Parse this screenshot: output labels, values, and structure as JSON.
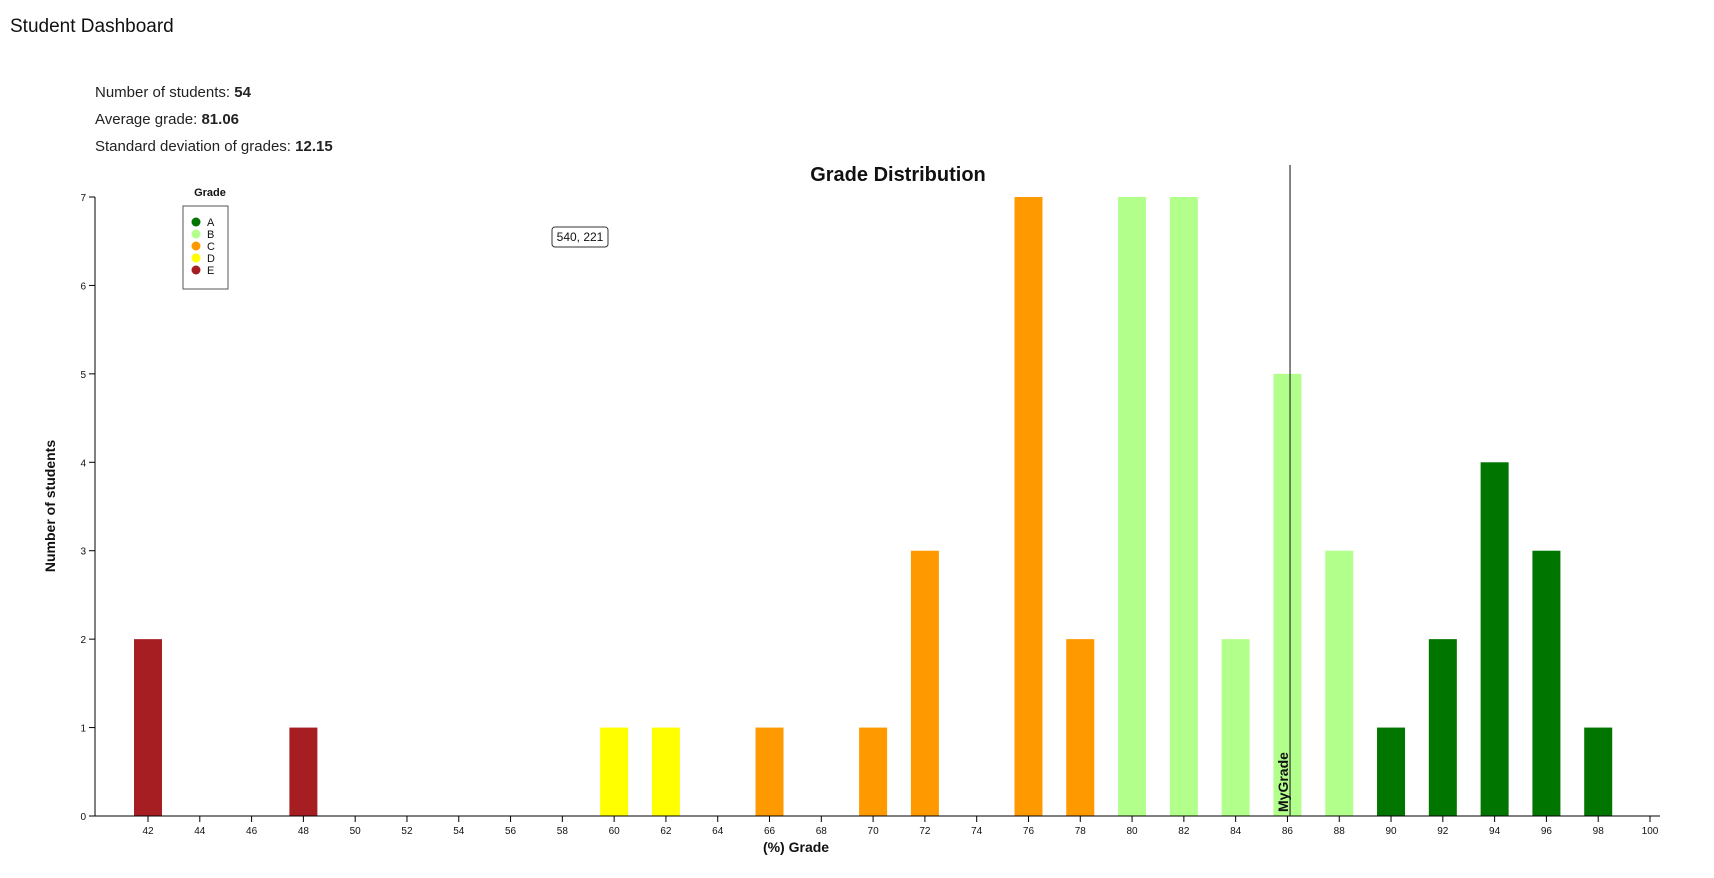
{
  "app": {
    "title": "Student Dashboard"
  },
  "stats": [
    {
      "label": "Number of students: ",
      "value": "54"
    },
    {
      "label": "Average grade: ",
      "value": "81.06"
    },
    {
      "label": "Standard deviation of grades: ",
      "value": "12.15"
    }
  ],
  "tooltip": {
    "text": "540, 221"
  },
  "colors": {
    "A": "#007500",
    "B": "#b3ff8c",
    "C": "#ff9900",
    "D": "#ffff00",
    "E": "#a61e22"
  },
  "chart_data": {
    "type": "bar",
    "title": "Grade Distribution",
    "xlabel": "(%) Grade",
    "ylabel": "Number of students",
    "x_ticks": [
      42,
      44,
      46,
      48,
      50,
      52,
      54,
      56,
      58,
      60,
      62,
      64,
      66,
      68,
      70,
      72,
      74,
      76,
      78,
      80,
      82,
      84,
      86,
      88,
      90,
      92,
      94,
      96,
      98,
      100
    ],
    "y_ticks": [
      0,
      1,
      2,
      3,
      4,
      5,
      6,
      7
    ],
    "xlim": [
      42,
      100
    ],
    "ylim": [
      0,
      7
    ],
    "bars": [
      {
        "x": 42,
        "value": 2,
        "grade": "E"
      },
      {
        "x": 48,
        "value": 1,
        "grade": "E"
      },
      {
        "x": 60,
        "value": 1,
        "grade": "D"
      },
      {
        "x": 62,
        "value": 1,
        "grade": "D"
      },
      {
        "x": 66,
        "value": 1,
        "grade": "C"
      },
      {
        "x": 70,
        "value": 1,
        "grade": "C"
      },
      {
        "x": 72,
        "value": 3,
        "grade": "C"
      },
      {
        "x": 76,
        "value": 7,
        "grade": "C"
      },
      {
        "x": 78,
        "value": 2,
        "grade": "C"
      },
      {
        "x": 80,
        "value": 7,
        "grade": "B"
      },
      {
        "x": 82,
        "value": 7,
        "grade": "B"
      },
      {
        "x": 84,
        "value": 2,
        "grade": "B"
      },
      {
        "x": 86,
        "value": 5,
        "grade": "B"
      },
      {
        "x": 88,
        "value": 3,
        "grade": "B"
      },
      {
        "x": 90,
        "value": 1,
        "grade": "A"
      },
      {
        "x": 92,
        "value": 2,
        "grade": "A"
      },
      {
        "x": 94,
        "value": 4,
        "grade": "A"
      },
      {
        "x": 96,
        "value": 3,
        "grade": "A"
      },
      {
        "x": 98,
        "value": 1,
        "grade": "A"
      }
    ],
    "legend": {
      "title": "Grade",
      "placement": "top-left",
      "items": [
        {
          "label": "A",
          "color": "#007500"
        },
        {
          "label": "B",
          "color": "#b3ff8c"
        },
        {
          "label": "C",
          "color": "#ff9900"
        },
        {
          "label": "D",
          "color": "#ffff00"
        },
        {
          "label": "E",
          "color": "#a61e22"
        }
      ]
    },
    "marker": {
      "label": "MyGrade",
      "x": 86.1
    }
  }
}
